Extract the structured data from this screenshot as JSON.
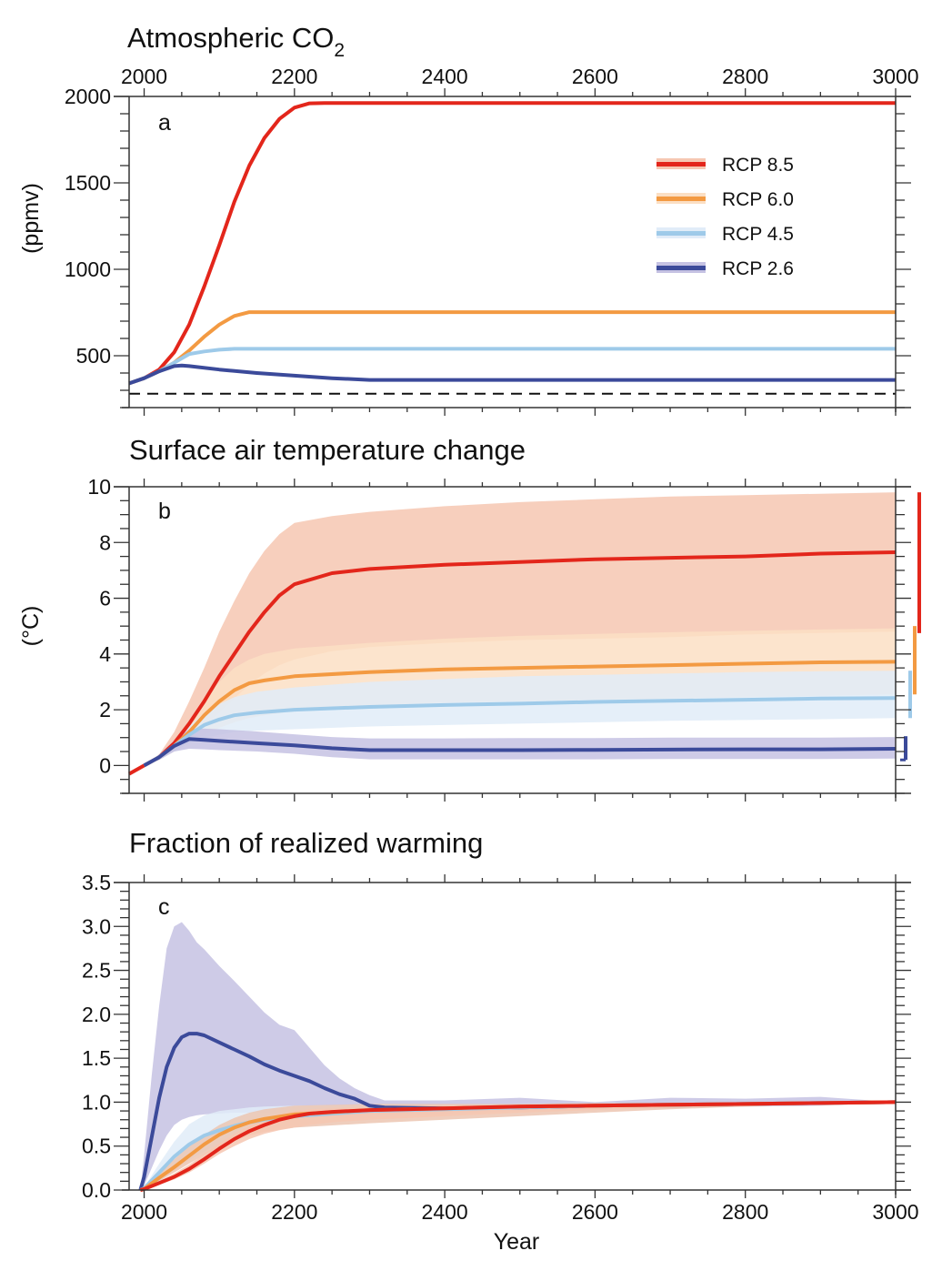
{
  "chart_data": [
    {
      "type": "line",
      "panel": "a",
      "title": "Atmospheric CO",
      "title_subscript": "2",
      "xlabel": "",
      "ylabel": "(ppmv)",
      "xlim": [
        1980,
        3000
      ],
      "ylim": [
        200,
        2000
      ],
      "x_ticks": [
        2000,
        2200,
        2400,
        2600,
        2800,
        3000
      ],
      "x_tick_labels": [
        "2000",
        "2200",
        "2400",
        "2600",
        "2800",
        "3000"
      ],
      "x_tick_labels_position": "top",
      "y_ticks": [
        500,
        1000,
        1500,
        2000
      ],
      "y_tick_labels": [
        "500",
        "1000",
        "1500",
        "2000"
      ],
      "grid": false,
      "legend_position": "top-right",
      "reference_line": {
        "y": 280,
        "style": "dashed",
        "color": "#111111"
      },
      "series": [
        {
          "name": "RCP 8.5",
          "color": "#e3261b",
          "x": [
            1980,
            2000,
            2020,
            2040,
            2060,
            2080,
            2100,
            2120,
            2140,
            2160,
            2180,
            2200,
            2220,
            2240,
            2250,
            3000
          ],
          "y": [
            340,
            370,
            420,
            520,
            680,
            900,
            1140,
            1390,
            1600,
            1760,
            1870,
            1935,
            1960,
            1962,
            1962,
            1962
          ]
        },
        {
          "name": "RCP 6.0",
          "color": "#f39a42",
          "x": [
            1980,
            2000,
            2020,
            2040,
            2060,
            2080,
            2100,
            2120,
            2140,
            2150,
            3000
          ],
          "y": [
            340,
            370,
            410,
            460,
            530,
            610,
            680,
            730,
            752,
            752,
            752
          ]
        },
        {
          "name": "RCP 4.5",
          "color": "#9ecae9",
          "x": [
            1980,
            2000,
            2020,
            2040,
            2060,
            2080,
            2100,
            2120,
            2150,
            3000
          ],
          "y": [
            340,
            370,
            410,
            460,
            510,
            525,
            535,
            540,
            540,
            540
          ]
        },
        {
          "name": "RCP 2.6",
          "color": "#3b4a9a",
          "x": [
            1980,
            2000,
            2020,
            2040,
            2050,
            2060,
            2100,
            2150,
            2200,
            2250,
            2300,
            3000
          ],
          "y": [
            340,
            370,
            410,
            440,
            443,
            440,
            420,
            400,
            385,
            370,
            360,
            360
          ]
        }
      ],
      "panel_label": "a"
    },
    {
      "type": "line",
      "panel": "b",
      "title": "Surface air temperature change",
      "xlabel": "",
      "ylabel": "(°C)",
      "xlim": [
        1980,
        3000
      ],
      "ylim": [
        -1,
        10
      ],
      "x_ticks": [
        2000,
        2200,
        2400,
        2600,
        2800,
        3000
      ],
      "y_ticks": [
        0,
        2,
        4,
        6,
        8,
        10
      ],
      "y_tick_labels": [
        "0",
        "2",
        "4",
        "6",
        "8",
        "10"
      ],
      "grid": false,
      "series": [
        {
          "name": "RCP 8.5",
          "color": "#e3261b",
          "band_color": "#f6c7b2",
          "x": [
            1980,
            2000,
            2020,
            2040,
            2060,
            2080,
            2100,
            2120,
            2140,
            2160,
            2180,
            2200,
            2250,
            2300,
            2400,
            2500,
            2600,
            2700,
            2800,
            2900,
            3000
          ],
          "y": [
            -0.3,
            0.0,
            0.3,
            0.8,
            1.5,
            2.3,
            3.2,
            4.0,
            4.8,
            5.5,
            6.1,
            6.5,
            6.9,
            7.05,
            7.2,
            7.3,
            7.4,
            7.45,
            7.5,
            7.6,
            7.65
          ],
          "lower": [
            -0.3,
            0.0,
            0.2,
            0.5,
            0.9,
            1.4,
            1.9,
            2.4,
            2.9,
            3.3,
            3.6,
            3.8,
            4.1,
            4.25,
            4.4,
            4.5,
            4.55,
            4.6,
            4.7,
            4.75,
            4.8
          ],
          "upper": [
            -0.3,
            0.0,
            0.4,
            1.2,
            2.3,
            3.5,
            4.8,
            5.9,
            6.9,
            7.7,
            8.3,
            8.7,
            8.95,
            9.1,
            9.3,
            9.45,
            9.55,
            9.65,
            9.7,
            9.75,
            9.8
          ],
          "end_range": [
            4.75,
            9.8
          ]
        },
        {
          "name": "RCP 6.0",
          "color": "#f39a42",
          "band_color": "#fbdfc4",
          "x": [
            2000,
            2020,
            2040,
            2060,
            2080,
            2100,
            2120,
            2140,
            2160,
            2200,
            2300,
            2400,
            2500,
            2600,
            2700,
            2800,
            2900,
            3000
          ],
          "y": [
            0.0,
            0.3,
            0.7,
            1.2,
            1.8,
            2.3,
            2.7,
            2.95,
            3.05,
            3.2,
            3.35,
            3.45,
            3.5,
            3.55,
            3.6,
            3.65,
            3.7,
            3.72
          ],
          "lower": [
            0.0,
            0.2,
            0.5,
            0.8,
            1.1,
            1.35,
            1.55,
            1.7,
            1.8,
            1.95,
            2.15,
            2.25,
            2.3,
            2.35,
            2.4,
            2.45,
            2.5,
            2.55
          ],
          "upper": [
            0.0,
            0.4,
            0.9,
            1.6,
            2.4,
            3.0,
            3.5,
            3.8,
            4.0,
            4.2,
            4.4,
            4.55,
            4.65,
            4.72,
            4.78,
            4.83,
            4.88,
            4.92
          ],
          "end_range": [
            2.55,
            5.0
          ]
        },
        {
          "name": "RCP 4.5",
          "color": "#9ecae9",
          "band_color": "#e1ecf8",
          "x": [
            2000,
            2020,
            2040,
            2060,
            2080,
            2100,
            2120,
            2150,
            2200,
            2300,
            2400,
            2500,
            2600,
            2700,
            2800,
            2900,
            3000
          ],
          "y": [
            0.0,
            0.3,
            0.7,
            1.1,
            1.45,
            1.65,
            1.8,
            1.9,
            2.0,
            2.1,
            2.17,
            2.22,
            2.28,
            2.32,
            2.36,
            2.4,
            2.42
          ],
          "lower": [
            0.0,
            0.2,
            0.5,
            0.8,
            1.0,
            1.1,
            1.2,
            1.25,
            1.3,
            1.4,
            1.45,
            1.5,
            1.55,
            1.6,
            1.63,
            1.66,
            1.7
          ],
          "upper": [
            0.0,
            0.4,
            0.9,
            1.4,
            1.9,
            2.2,
            2.45,
            2.65,
            2.8,
            3.0,
            3.1,
            3.2,
            3.25,
            3.3,
            3.35,
            3.38,
            3.4
          ],
          "end_range": [
            1.7,
            3.4
          ]
        },
        {
          "name": "RCP 2.6",
          "color": "#3b4a9a",
          "band_color": "#c5c2e3",
          "x": [
            2000,
            2020,
            2040,
            2060,
            2080,
            2100,
            2150,
            2200,
            2250,
            2300,
            2400,
            2500,
            2600,
            2700,
            2800,
            2900,
            3000
          ],
          "y": [
            0.0,
            0.3,
            0.7,
            0.95,
            0.92,
            0.88,
            0.8,
            0.72,
            0.62,
            0.55,
            0.55,
            0.55,
            0.56,
            0.57,
            0.58,
            0.58,
            0.6
          ],
          "lower": [
            0.0,
            0.2,
            0.5,
            0.6,
            0.58,
            0.55,
            0.5,
            0.42,
            0.3,
            0.22,
            0.22,
            0.22,
            0.22,
            0.23,
            0.23,
            0.23,
            0.25
          ],
          "upper": [
            0.0,
            0.4,
            0.9,
            1.3,
            1.32,
            1.3,
            1.22,
            1.12,
            1.02,
            0.97,
            0.97,
            0.98,
            0.98,
            1.0,
            1.0,
            1.0,
            1.02
          ],
          "end_range": [
            0.2,
            1.05
          ]
        }
      ],
      "panel_label": "b"
    },
    {
      "type": "line",
      "panel": "c",
      "title": "Fraction of realized warming",
      "xlabel": "Year",
      "ylabel": "",
      "xlim": [
        1980,
        3000
      ],
      "ylim": [
        0,
        3.5
      ],
      "x_ticks": [
        2000,
        2200,
        2400,
        2600,
        2800,
        3000
      ],
      "x_tick_labels": [
        "2000",
        "2200",
        "2400",
        "2600",
        "2800",
        "3000"
      ],
      "y_ticks": [
        0.0,
        0.5,
        1.0,
        1.5,
        2.0,
        2.5,
        3.0,
        3.5
      ],
      "y_tick_labels": [
        "0.0",
        "0.5",
        "1.0",
        "1.5",
        "2.0",
        "2.5",
        "3.0",
        "3.5"
      ],
      "grid": false,
      "series": [
        {
          "name": "RCP 2.6",
          "color": "#3b4a9a",
          "band_color": "#c5c2e3",
          "x": [
            1995,
            2000,
            2010,
            2020,
            2030,
            2040,
            2050,
            2060,
            2070,
            2080,
            2100,
            2120,
            2140,
            2160,
            2180,
            2200,
            2220,
            2240,
            2260,
            2280,
            2300,
            2320,
            2400,
            2500,
            2600,
            2700,
            2800,
            2900,
            3000
          ],
          "y": [
            0.0,
            0.15,
            0.6,
            1.05,
            1.4,
            1.62,
            1.74,
            1.78,
            1.78,
            1.76,
            1.68,
            1.6,
            1.52,
            1.43,
            1.36,
            1.3,
            1.24,
            1.16,
            1.09,
            1.04,
            0.96,
            0.94,
            0.93,
            0.94,
            0.96,
            0.97,
            0.98,
            0.99,
            1.0
          ],
          "lower": [
            0.0,
            0.05,
            0.25,
            0.45,
            0.62,
            0.74,
            0.8,
            0.83,
            0.85,
            0.86,
            0.87,
            0.88,
            0.88,
            0.88,
            0.87,
            0.87,
            0.87,
            0.86,
            0.86,
            0.86,
            0.86,
            0.86,
            0.87,
            0.9,
            0.92,
            0.93,
            0.95,
            0.96,
            1.0
          ],
          "upper": [
            0.0,
            0.4,
            1.3,
            2.1,
            2.75,
            3.0,
            3.05,
            2.95,
            2.82,
            2.74,
            2.55,
            2.38,
            2.2,
            2.02,
            1.88,
            1.82,
            1.62,
            1.42,
            1.27,
            1.16,
            1.08,
            1.02,
            1.02,
            1.05,
            1.0,
            1.05,
            1.04,
            1.06,
            1.0
          ]
        },
        {
          "name": "RCP 4.5",
          "color": "#9ecae9",
          "band_color": "#e1ecf8",
          "x": [
            1995,
            2000,
            2020,
            2040,
            2060,
            2080,
            2100,
            2120,
            2140,
            2160,
            2200,
            2300,
            2400,
            2500,
            2600,
            2700,
            2800,
            2900,
            3000
          ],
          "y": [
            0.0,
            0.02,
            0.2,
            0.38,
            0.52,
            0.62,
            0.68,
            0.73,
            0.77,
            0.8,
            0.84,
            0.9,
            0.92,
            0.94,
            0.96,
            0.97,
            0.98,
            0.99,
            1.0
          ],
          "lower": [
            0.0,
            0.01,
            0.1,
            0.22,
            0.34,
            0.44,
            0.52,
            0.58,
            0.63,
            0.68,
            0.74,
            0.82,
            0.86,
            0.89,
            0.91,
            0.94,
            0.96,
            0.98,
            1.0
          ],
          "upper": [
            0.0,
            0.03,
            0.3,
            0.55,
            0.75,
            0.85,
            0.9,
            0.92,
            0.94,
            0.95,
            0.96,
            0.97,
            0.97,
            0.98,
            0.98,
            0.99,
            0.99,
            1.0,
            1.0
          ]
        },
        {
          "name": "RCP 6.0",
          "color": "#f39a42",
          "band_color": "#ecc5b1",
          "x": [
            1995,
            2000,
            2020,
            2040,
            2060,
            2080,
            2100,
            2120,
            2140,
            2160,
            2200,
            2300,
            2400,
            2500,
            2600,
            2700,
            2800,
            2900,
            3000
          ],
          "y": [
            0.0,
            0.01,
            0.14,
            0.26,
            0.39,
            0.52,
            0.63,
            0.71,
            0.77,
            0.81,
            0.86,
            0.91,
            0.93,
            0.95,
            0.96,
            0.97,
            0.98,
            0.99,
            1.0
          ],
          "lower": [
            0.0,
            0.01,
            0.1,
            0.2,
            0.3,
            0.4,
            0.49,
            0.56,
            0.62,
            0.66,
            0.71,
            0.76,
            0.8,
            0.84,
            0.88,
            0.92,
            0.95,
            0.98,
            1.0
          ],
          "upper": [
            0.0,
            0.02,
            0.2,
            0.35,
            0.5,
            0.63,
            0.74,
            0.82,
            0.88,
            0.92,
            0.96,
            0.98,
            0.98,
            0.98,
            0.99,
            0.99,
            0.99,
            1.0,
            1.0
          ]
        },
        {
          "name": "RCP 8.5",
          "color": "#e3261b",
          "band_color": "#f6c7b2",
          "x": [
            1995,
            2000,
            2020,
            2040,
            2060,
            2080,
            2100,
            2120,
            2140,
            2160,
            2180,
            2200,
            2220,
            2250,
            2300,
            2400,
            2500,
            2600,
            2700,
            2800,
            2900,
            3000
          ],
          "y": [
            0.0,
            0.01,
            0.08,
            0.15,
            0.24,
            0.35,
            0.47,
            0.58,
            0.67,
            0.74,
            0.8,
            0.84,
            0.87,
            0.89,
            0.91,
            0.93,
            0.95,
            0.96,
            0.97,
            0.98,
            0.99,
            1.0
          ],
          "lower": [
            0.0,
            0.01,
            0.06,
            0.12,
            0.2,
            0.3,
            0.41,
            0.5,
            0.58,
            0.64,
            0.68,
            0.71,
            0.74,
            0.77,
            0.8,
            0.84,
            0.88,
            0.91,
            0.94,
            0.96,
            0.98,
            1.0
          ],
          "upper": [
            0.0,
            0.02,
            0.1,
            0.19,
            0.29,
            0.41,
            0.53,
            0.64,
            0.73,
            0.8,
            0.86,
            0.9,
            0.92,
            0.93,
            0.94,
            0.96,
            0.97,
            0.98,
            0.99,
            0.99,
            1.0,
            1.0
          ]
        }
      ],
      "panel_label": "c"
    }
  ],
  "legend": {
    "items": [
      {
        "label": "RCP 8.5",
        "color": "#e3261b",
        "band_color": "#f6c7b2"
      },
      {
        "label": "RCP 6.0",
        "color": "#f39a42",
        "band_color": "#fbdfc4"
      },
      {
        "label": "RCP 4.5",
        "color": "#9ecae9",
        "band_color": "#e1ecf8"
      },
      {
        "label": "RCP 2.6",
        "color": "#3b4a9a",
        "band_color": "#c5c2e3"
      }
    ]
  }
}
